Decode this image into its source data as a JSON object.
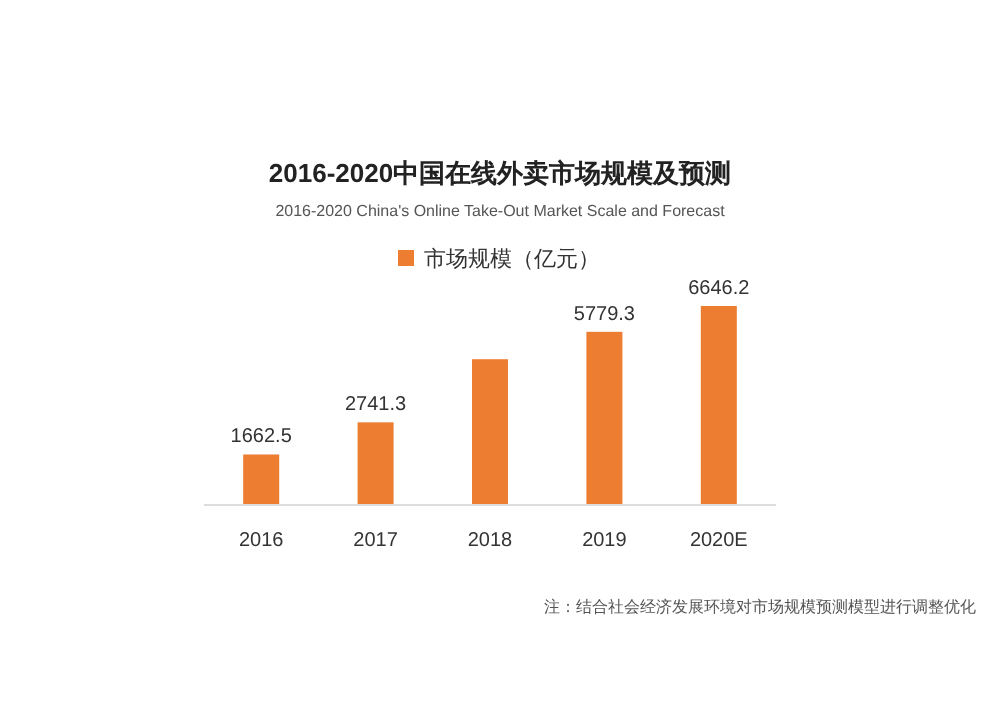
{
  "chart_data": {
    "type": "bar",
    "title": "2016-2020中国在线外卖市场规模及预测",
    "subtitle": "2016-2020 China's Online Take-Out Market Scale and Forecast",
    "categories": [
      "2016",
      "2017",
      "2018",
      "2019",
      "2020E"
    ],
    "series": [
      {
        "name": "市场规模（亿元）",
        "color": "#ed7d31",
        "values": [
          1662.5,
          2741.3,
          4860,
          5779.3,
          6646.2
        ],
        "value_labels": [
          "1662.5",
          "2741.3",
          null,
          "5779.3",
          "6646.2"
        ]
      }
    ],
    "legend": "top",
    "annotations": [
      "注：结合社会经济发展环境对市场规模预测模型进行调整优化"
    ]
  }
}
